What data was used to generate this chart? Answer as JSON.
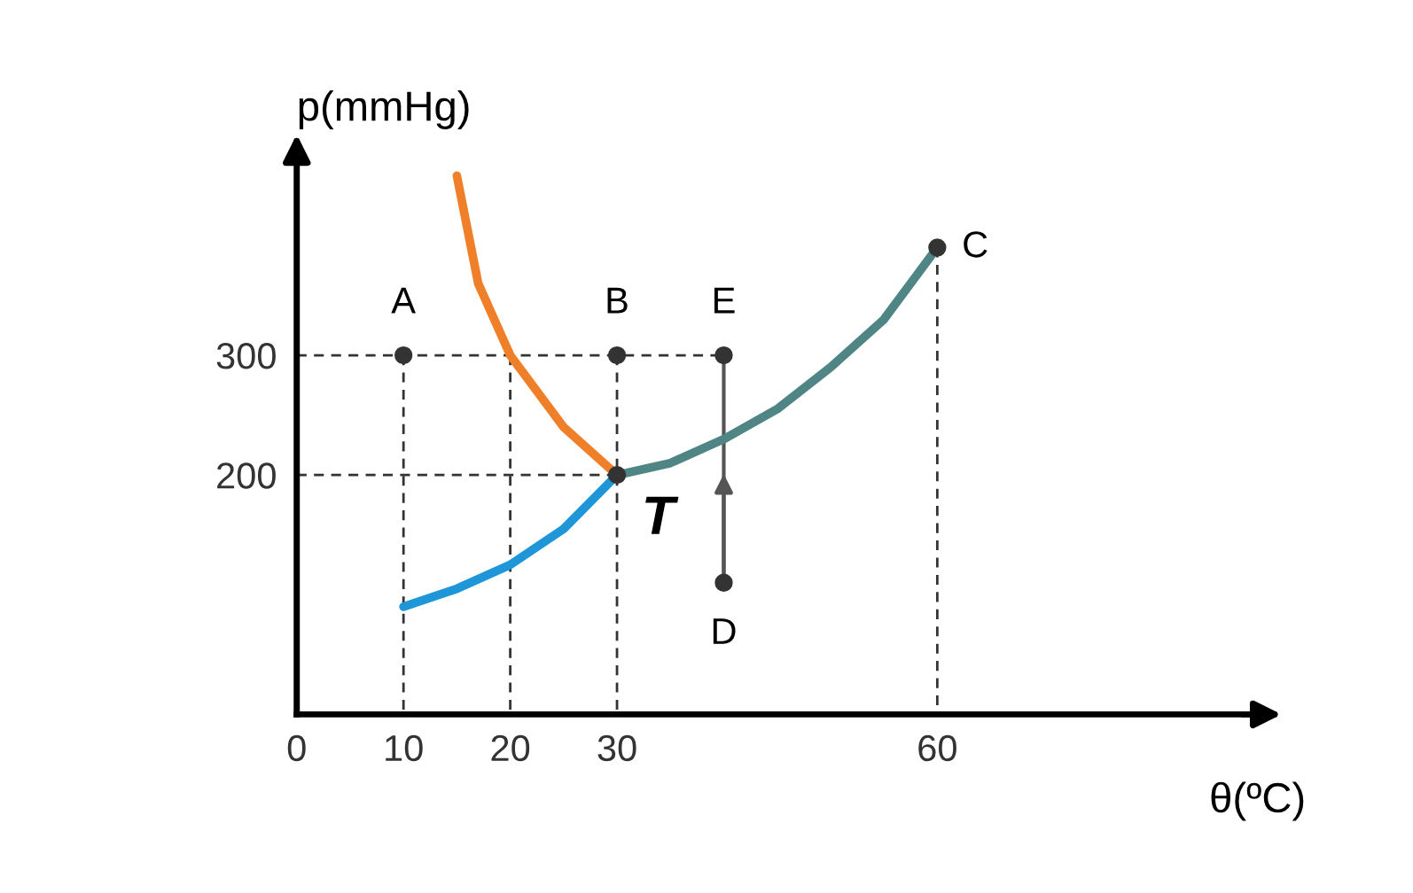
{
  "chart_data": {
    "type": "line",
    "xlabel": "θ(ºC)",
    "ylabel": "p(mmHg)",
    "xlim": [
      0,
      90
    ],
    "ylim": [
      0,
      470
    ],
    "xticks": [
      0,
      10,
      20,
      30,
      60
    ],
    "yticks": [
      200,
      300
    ],
    "grid": false,
    "series": [
      {
        "x": [
          0,
          40
        ],
        "values": [
          300,
          300
        ],
        "color": "#333333",
        "line_style": "dashed",
        "marker": "none"
      },
      {
        "x": [
          0,
          30
        ],
        "values": [
          200,
          200
        ],
        "color": "#333333",
        "line_style": "dashed",
        "marker": "none"
      },
      {
        "x": [
          10,
          10
        ],
        "values": [
          300,
          0
        ],
        "color": "#333333",
        "line_style": "dashed",
        "marker": "none"
      },
      {
        "x": [
          20,
          20
        ],
        "values": [
          300,
          0
        ],
        "color": "#333333",
        "line_style": "dashed",
        "marker": "none"
      },
      {
        "x": [
          30,
          30
        ],
        "values": [
          300,
          0
        ],
        "color": "#333333",
        "line_style": "dashed",
        "marker": "none"
      },
      {
        "x": [
          60,
          60
        ],
        "values": [
          390,
          0
        ],
        "color": "#333333",
        "line_style": "dashed",
        "marker": "none"
      },
      {
        "x": [
          40,
          40
        ],
        "values": [
          110,
          300
        ],
        "color": "#555555",
        "line_style": "solid",
        "marker": "none"
      },
      {
        "x": [
          15,
          17,
          20,
          25,
          30
        ],
        "values": [
          450,
          360,
          300,
          240,
          200
        ],
        "color": "#f07f2a",
        "line_style": "solid",
        "marker": "none"
      },
      {
        "x": [
          10,
          15,
          20,
          25,
          30
        ],
        "values": [
          90,
          105,
          125,
          155,
          200
        ],
        "color": "#1f96d8",
        "line_style": "solid",
        "marker": "none"
      },
      {
        "x": [
          30,
          35,
          40,
          45,
          50,
          55,
          60
        ],
        "values": [
          200,
          210,
          230,
          255,
          290,
          330,
          390
        ],
        "color": "#4f8585",
        "line_style": "solid",
        "marker": "none"
      },
      {
        "type": "scatter",
        "x": [
          10,
          30,
          40,
          40,
          30,
          60
        ],
        "values": [
          300,
          300,
          300,
          110,
          200,
          390
        ],
        "color": "#333333",
        "marker": "circle"
      }
    ],
    "annotations": [
      {
        "text": "A",
        "x": 10,
        "y": 300
      },
      {
        "text": "B",
        "x": 30,
        "y": 300
      },
      {
        "text": "E",
        "x": 40,
        "y": 300
      },
      {
        "text": "D",
        "x": 40,
        "y": 110
      },
      {
        "text": "C",
        "x": 60,
        "y": 390
      },
      {
        "text": "T",
        "x": 30,
        "y": 200
      }
    ]
  }
}
